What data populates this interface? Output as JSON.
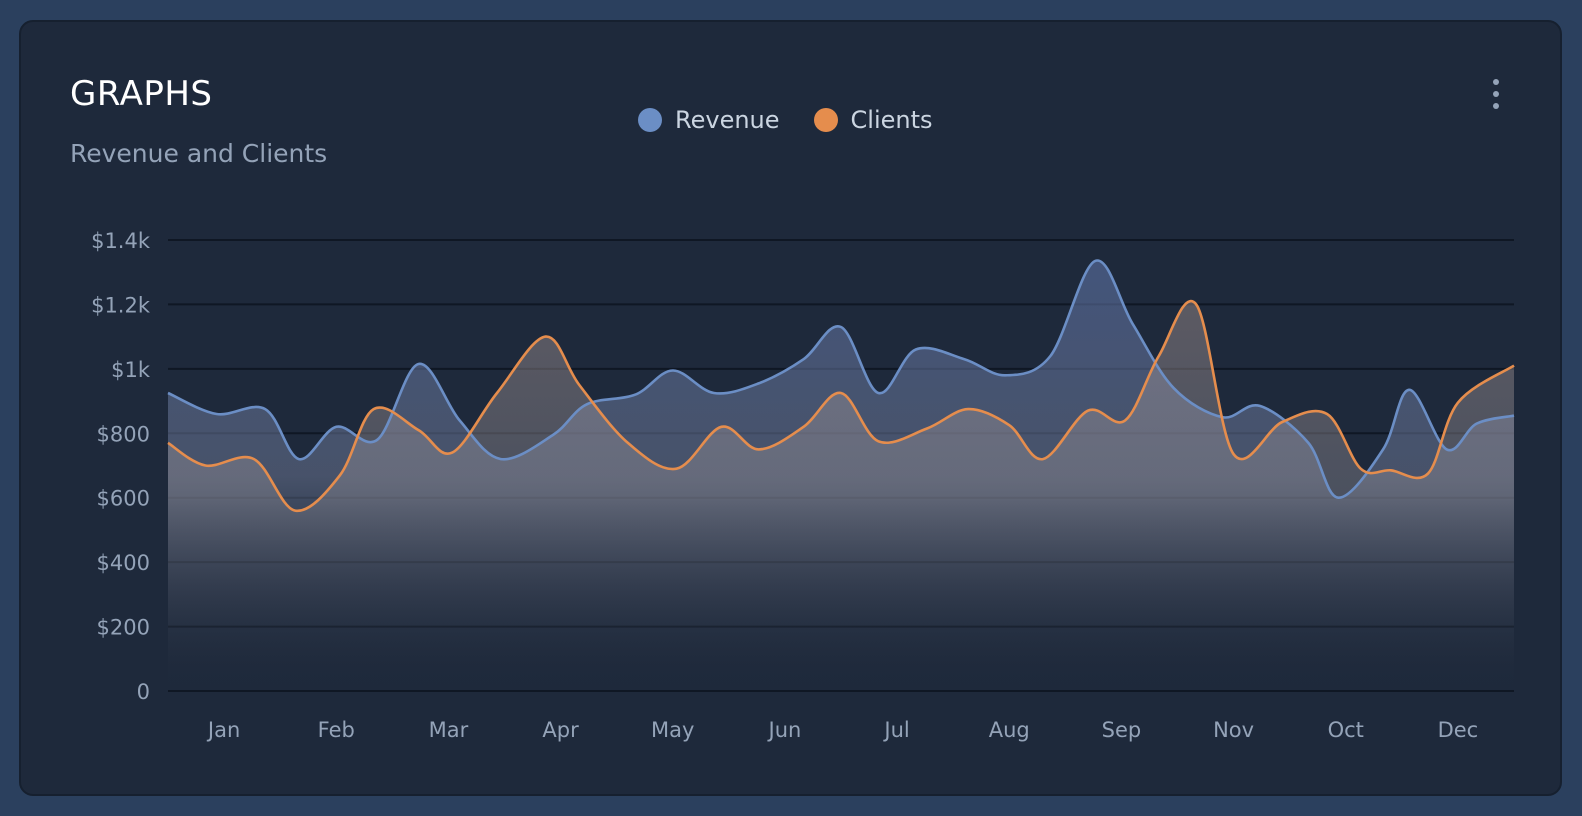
{
  "card": {
    "title": "GRAPHS",
    "subtitle": "Revenue and Clients"
  },
  "legend": [
    {
      "label": "Revenue",
      "color": "#6b8ec5"
    },
    {
      "label": "Clients",
      "color": "#e58d4d"
    }
  ],
  "menu_icon": "more-vertical-icon",
  "chart_data": {
    "type": "area",
    "title": "Revenue and Clients",
    "categories": [
      "Jan",
      "Feb",
      "Mar",
      "Apr",
      "May",
      "Jun",
      "Jul",
      "Aug",
      "Sep",
      "Nov",
      "Oct",
      "Dec"
    ],
    "y_ticks": [
      "$1.4k",
      "$1.2k",
      "$1k",
      "$800",
      "$600",
      "$400",
      "$200",
      "0"
    ],
    "ylim": [
      0,
      1400
    ],
    "x_range": [
      0,
      36
    ],
    "grid": true,
    "series": [
      {
        "name": "Revenue",
        "color": "#6b8ec5",
        "points": [
          [
            0,
            925
          ],
          [
            1.3,
            860
          ],
          [
            2.6,
            875
          ],
          [
            3.5,
            720
          ],
          [
            4.5,
            820
          ],
          [
            5.6,
            780
          ],
          [
            6.7,
            1015
          ],
          [
            7.8,
            840
          ],
          [
            8.9,
            720
          ],
          [
            10.3,
            795
          ],
          [
            11.2,
            890
          ],
          [
            12.5,
            920
          ],
          [
            13.5,
            995
          ],
          [
            14.6,
            925
          ],
          [
            15.8,
            955
          ],
          [
            17,
            1030
          ],
          [
            18,
            1130
          ],
          [
            19,
            925
          ],
          [
            20,
            1060
          ],
          [
            21.3,
            1030
          ],
          [
            22.4,
            980
          ],
          [
            23.6,
            1040
          ],
          [
            24.8,
            1335
          ],
          [
            25.8,
            1140
          ],
          [
            26.9,
            940
          ],
          [
            28.2,
            850
          ],
          [
            29.2,
            885
          ],
          [
            30.5,
            770
          ],
          [
            31.3,
            600
          ],
          [
            32.5,
            750
          ],
          [
            33.2,
            935
          ],
          [
            34.2,
            750
          ],
          [
            35,
            830
          ],
          [
            36,
            855
          ]
        ]
      },
      {
        "name": "Clients",
        "color": "#e58d4d",
        "points": [
          [
            0,
            770
          ],
          [
            1,
            700
          ],
          [
            2.3,
            720
          ],
          [
            3.4,
            560
          ],
          [
            4.6,
            670
          ],
          [
            5.5,
            875
          ],
          [
            6.7,
            810
          ],
          [
            7.6,
            740
          ],
          [
            8.8,
            925
          ],
          [
            10.1,
            1100
          ],
          [
            11,
            950
          ],
          [
            12.3,
            770
          ],
          [
            13.6,
            690
          ],
          [
            14.8,
            820
          ],
          [
            15.8,
            750
          ],
          [
            17,
            820
          ],
          [
            18,
            925
          ],
          [
            19,
            775
          ],
          [
            20.3,
            815
          ],
          [
            21.4,
            875
          ],
          [
            22.5,
            825
          ],
          [
            23.4,
            720
          ],
          [
            24.6,
            870
          ],
          [
            25.6,
            840
          ],
          [
            26.5,
            1040
          ],
          [
            27.5,
            1200
          ],
          [
            28.5,
            735
          ],
          [
            29.8,
            835
          ],
          [
            31,
            860
          ],
          [
            31.9,
            690
          ],
          [
            32.7,
            685
          ],
          [
            33.7,
            675
          ],
          [
            34.5,
            895
          ],
          [
            36,
            1010
          ]
        ]
      }
    ]
  }
}
